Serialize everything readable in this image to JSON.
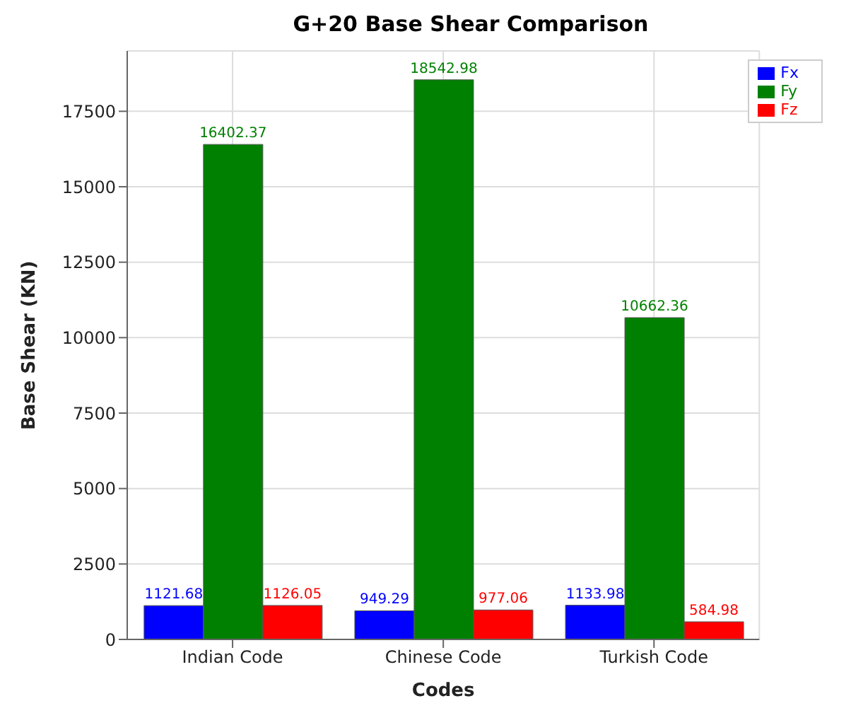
{
  "chart_data": {
    "type": "bar",
    "title": "G+20 Base Shear Comparison",
    "xlabel": "Codes",
    "ylabel": "Base Shear (KN)",
    "categories": [
      "Indian Code",
      "Chinese Code",
      "Turkish Code"
    ],
    "series": [
      {
        "name": "Fx",
        "color": "#0000ff",
        "values": [
          1121.68,
          949.29,
          1133.98
        ]
      },
      {
        "name": "Fy",
        "color": "#008000",
        "values": [
          16402.37,
          18542.98,
          10662.36
        ]
      },
      {
        "name": "Fz",
        "color": "#ff0000",
        "values": [
          1126.05,
          977.06,
          584.98
        ]
      }
    ],
    "ylim": [
      0,
      19500
    ],
    "yticks": [
      0,
      2500,
      5000,
      7500,
      10000,
      12500,
      15000,
      17500
    ],
    "grid": true,
    "legend": "top right",
    "data_labels": true
  }
}
